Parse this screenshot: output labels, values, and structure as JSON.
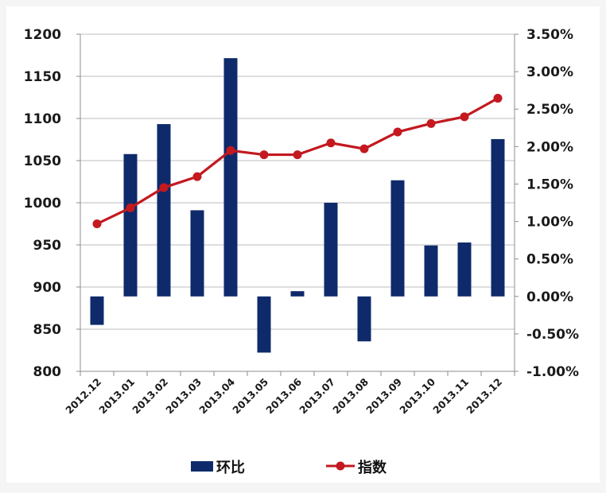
{
  "chart_data": {
    "type": "bar",
    "categories": [
      "2012.12",
      "2013.01",
      "2013.02",
      "2013.03",
      "2013.04",
      "2013.05",
      "2013.06",
      "2013.07",
      "2013.08",
      "2013.09",
      "2013.10",
      "2013.11",
      "2013.12"
    ],
    "series": [
      {
        "name": "环比",
        "type": "bar",
        "axis": "right",
        "color": "#0f2a6b",
        "values": [
          -0.38,
          1.9,
          2.3,
          1.15,
          3.18,
          -0.75,
          0.07,
          1.25,
          -0.6,
          1.55,
          0.68,
          0.72,
          2.1
        ]
      },
      {
        "name": "指数",
        "type": "line",
        "axis": "left",
        "color": "#c3191f",
        "values": [
          975,
          994,
          1018,
          1031,
          1062,
          1057,
          1057,
          1071,
          1064,
          1084,
          1094,
          1102,
          1124
        ]
      }
    ],
    "y_left": {
      "min": 800,
      "max": 1200,
      "ticks": [
        "800",
        "850",
        "900",
        "950",
        "1000",
        "1050",
        "1100",
        "1150",
        "1200"
      ]
    },
    "y_right": {
      "min": -1.0,
      "max": 3.5,
      "ticks": [
        "-1.00%",
        "-0.50%",
        "0.00%",
        "0.50%",
        "1.00%",
        "1.50%",
        "2.00%",
        "2.50%",
        "3.00%",
        "3.50%"
      ]
    },
    "grid": "horizontal",
    "legend": "bottom",
    "title": "",
    "xlabel": "",
    "ylabel": ""
  }
}
